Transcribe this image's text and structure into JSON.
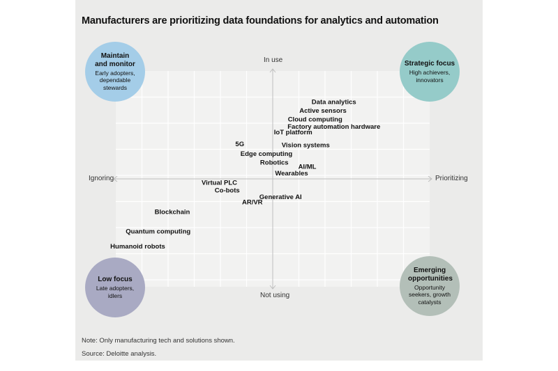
{
  "chart_data": {
    "type": "scatter",
    "title": "Manufacturers are prioritizing data foundations for analytics and automation",
    "xlabel_left": "Ignoring",
    "xlabel_right": "Prioritizing",
    "ylabel_top": "In use",
    "ylabel_bottom": "Not using",
    "xlim": [
      -1,
      1
    ],
    "ylim": [
      -1,
      1
    ],
    "grid": true,
    "points": [
      {
        "label": "Data analytics",
        "x": 0.39,
        "y": 0.71
      },
      {
        "label": "Active sensors",
        "x": 0.32,
        "y": 0.63
      },
      {
        "label": "Cloud computing",
        "x": 0.27,
        "y": 0.55
      },
      {
        "label": "Factory automation hardware",
        "x": 0.39,
        "y": 0.48
      },
      {
        "label": "IoT platform",
        "x": 0.13,
        "y": 0.43
      },
      {
        "label": "5G",
        "x": -0.21,
        "y": 0.32
      },
      {
        "label": "Vision systems",
        "x": 0.21,
        "y": 0.31
      },
      {
        "label": "Edge computing",
        "x": -0.04,
        "y": 0.23
      },
      {
        "label": "Robotics",
        "x": 0.01,
        "y": 0.15
      },
      {
        "label": "AI/ML",
        "x": 0.22,
        "y": 0.11
      },
      {
        "label": "Wearables",
        "x": 0.12,
        "y": 0.05
      },
      {
        "label": "Virtual PLC",
        "x": -0.34,
        "y": -0.04
      },
      {
        "label": "Co-bots",
        "x": -0.29,
        "y": -0.11
      },
      {
        "label": "Generative AI",
        "x": 0.05,
        "y": -0.17
      },
      {
        "label": "AR/VR",
        "x": -0.13,
        "y": -0.22
      },
      {
        "label": "Blockchain",
        "x": -0.64,
        "y": -0.31
      },
      {
        "label": "Quantum computing",
        "x": -0.73,
        "y": -0.49
      },
      {
        "label": "Humanoid robots",
        "x": -0.86,
        "y": -0.63
      }
    ],
    "quadrants": [
      {
        "position": "top-left",
        "title": "Maintain and monitor",
        "subtitle": "Early adopters, dependable stewards",
        "color": "#a4cde8"
      },
      {
        "position": "top-right",
        "title": "Strategic focus",
        "subtitle": "High achievers, innovators",
        "color": "#95cbc9"
      },
      {
        "position": "bottom-left",
        "title": "Low focus",
        "subtitle": "Late adopters, idlers",
        "color": "#a9aac3"
      },
      {
        "position": "bottom-right",
        "title": "Emerging opportunities",
        "subtitle": "Opportunity seekers, growth catalysts",
        "color": "#b3bfb8"
      }
    ]
  },
  "notes": {
    "note": "Note: Only manufacturing tech and solutions shown.",
    "source": "Source: Deloitte analysis."
  },
  "colors": {
    "axis": "#bdbdbd",
    "grid": "#ffffff"
  }
}
